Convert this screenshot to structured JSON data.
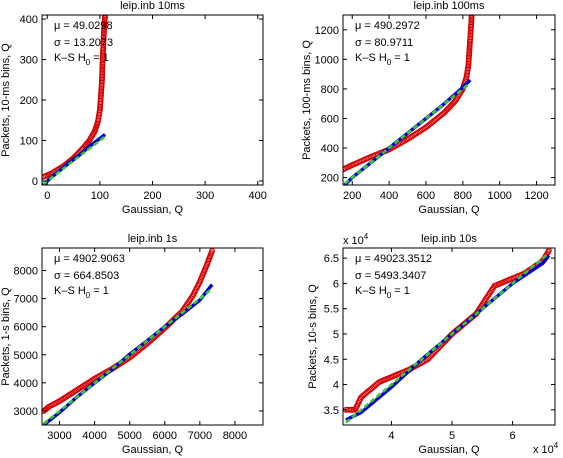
{
  "chart_data": [
    {
      "type": "scatter",
      "title": "leip.inb 10ms",
      "xlabel": "Gaussian, Q",
      "ylabel": "Packets, 10-ms bins, Q",
      "xlim": [
        -10,
        410
      ],
      "ylim": [
        -10,
        410
      ],
      "xticks": [
        0,
        100,
        200,
        300,
        400
      ],
      "yticks": [
        0,
        100,
        200,
        300,
        400
      ],
      "tick_labels_x": [
        "0",
        "100",
        "200",
        "300",
        "400"
      ],
      "tick_labels_y": [
        "0",
        "100",
        "200",
        "300",
        "400"
      ],
      "annotations": {
        "mu": "μ = 49.0298",
        "sigma": "σ = 13.2073",
        "ks": "K–S H",
        "ks_sub": "0",
        "ks_val": " = 1"
      },
      "series": [
        {
          "color": "#d40000",
          "style": "markers",
          "x": [
            -8,
            0,
            10,
            20,
            30,
            40,
            50,
            60,
            70,
            80,
            90,
            96,
            100,
            102,
            104,
            105,
            106,
            107,
            108,
            109,
            110
          ],
          "y": [
            10,
            14,
            20,
            28,
            36,
            46,
            57,
            70,
            84,
            100,
            122,
            145,
            175,
            210,
            250,
            290,
            320,
            350,
            375,
            395,
            410
          ]
        },
        {
          "color": "#0000cc",
          "style": "line",
          "x": [
            -8,
            0,
            20,
            40,
            60,
            80,
            100,
            110
          ],
          "y": [
            -10,
            0,
            22,
            43,
            63,
            85,
            105,
            115
          ]
        },
        {
          "color": "#33cc33",
          "style": "dashed",
          "x": [
            -8,
            0,
            20,
            40,
            60,
            80,
            100,
            108
          ],
          "y": [
            -8,
            0,
            20,
            40,
            60,
            80,
            100,
            108
          ]
        }
      ]
    },
    {
      "type": "scatter",
      "title": "leip.inb 100ms",
      "xlabel": "Gaussian, Q",
      "ylabel": "Packets, 100-ms bins, Q",
      "xlim": [
        150,
        1300
      ],
      "ylim": [
        150,
        1300
      ],
      "xticks": [
        200,
        400,
        600,
        800,
        1000,
        1200
      ],
      "yticks": [
        200,
        400,
        600,
        800,
        1000,
        1200
      ],
      "tick_labels_x": [
        "200",
        "400",
        "600",
        "800",
        "1000",
        "1200"
      ],
      "tick_labels_y": [
        "200",
        "400",
        "600",
        "800",
        "1000",
        "1200"
      ],
      "annotations": {
        "mu": "μ = 490.2972",
        "sigma": "σ = 80.9711",
        "ks": "K–S H",
        "ks_sub": "0",
        "ks_val": " = 1"
      },
      "series": [
        {
          "color": "#d40000",
          "style": "markers",
          "x": [
            150,
            200,
            300,
            400,
            500,
            600,
            700,
            760,
            800,
            820,
            830,
            835,
            840,
            845,
            848
          ],
          "y": [
            255,
            285,
            340,
            390,
            460,
            540,
            640,
            720,
            800,
            880,
            960,
            1050,
            1140,
            1230,
            1300
          ]
        },
        {
          "color": "#0000cc",
          "style": "line",
          "x": [
            160,
            200,
            300,
            400,
            500,
            600,
            700,
            800,
            840
          ],
          "y": [
            150,
            200,
            300,
            400,
            500,
            600,
            700,
            810,
            860
          ]
        },
        {
          "color": "#33cc33",
          "style": "dashed",
          "x": [
            160,
            200,
            300,
            400,
            500,
            600,
            700,
            800,
            835
          ],
          "y": [
            160,
            200,
            300,
            400,
            500,
            600,
            700,
            800,
            835
          ]
        }
      ]
    },
    {
      "type": "scatter",
      "title": "leip.inb 1s",
      "xlabel": "Gaussian, Q",
      "ylabel": "Packets, 1-s bins, Q",
      "xlim": [
        2500,
        8800
      ],
      "ylim": [
        2500,
        8800
      ],
      "xticks": [
        3000,
        4000,
        5000,
        6000,
        7000,
        8000
      ],
      "yticks": [
        3000,
        4000,
        5000,
        6000,
        7000,
        8000
      ],
      "tick_labels_x": [
        "3000",
        "4000",
        "5000",
        "6000",
        "7000",
        "8000"
      ],
      "tick_labels_y": [
        "3000",
        "4000",
        "5000",
        "6000",
        "7000",
        "8000"
      ],
      "annotations": {
        "mu": "μ = 4902.9063",
        "sigma": "σ = 664.8503",
        "ks": "K–S H",
        "ks_sub": "0",
        "ks_val": " = 1"
      },
      "series": [
        {
          "color": "#d40000",
          "style": "markers",
          "x": [
            2550,
            2700,
            3000,
            3500,
            4000,
            4500,
            5000,
            5500,
            6000,
            6500,
            6800,
            7000,
            7200,
            7350
          ],
          "y": [
            3000,
            3150,
            3350,
            3750,
            4150,
            4500,
            4900,
            5400,
            5950,
            6550,
            7100,
            7600,
            8200,
            8700
          ]
        },
        {
          "color": "#0000cc",
          "style": "line",
          "x": [
            2550,
            3000,
            3500,
            4000,
            4500,
            5000,
            5500,
            6000,
            6500,
            7000,
            7350
          ],
          "y": [
            2500,
            2950,
            3500,
            4000,
            4480,
            5020,
            5500,
            6000,
            6450,
            6950,
            7500
          ]
        },
        {
          "color": "#33cc33",
          "style": "dashed",
          "x": [
            2550,
            3000,
            4000,
            5000,
            6000,
            7000,
            7350
          ],
          "y": [
            2550,
            3000,
            4000,
            5000,
            6000,
            7000,
            7350
          ]
        }
      ]
    },
    {
      "type": "scatter",
      "title": "leip.inb 10s",
      "xlabel": "Gaussian, Q",
      "ylabel": "Packets, 10-s bins, Q",
      "xlim": [
        3.2,
        6.7
      ],
      "ylim": [
        3.2,
        6.7
      ],
      "xticks": [
        4,
        5,
        6
      ],
      "yticks": [
        3.5,
        4,
        4.5,
        5,
        5.5,
        6,
        6.5
      ],
      "tick_labels_x": [
        "4",
        "5",
        "6"
      ],
      "tick_labels_y": [
        "3.5",
        "4",
        "4.5",
        "5",
        "5.5",
        "6",
        "6.5"
      ],
      "scale_note_base": "x 10",
      "scale_note_exp": "4",
      "annotations": {
        "mu": "μ = 49023.3512",
        "sigma": "σ = 5493.3407",
        "ks": "K–S H",
        "ks_sub": "0",
        "ks_val": " = 1"
      },
      "series": [
        {
          "color": "#d40000",
          "style": "markers",
          "x": [
            3.25,
            3.4,
            3.5,
            3.6,
            3.7,
            3.8,
            4.0,
            4.3,
            4.6,
            5.0,
            5.4,
            5.7,
            5.9,
            6.2,
            6.5,
            6.6
          ],
          "y": [
            3.5,
            3.5,
            3.75,
            3.85,
            3.95,
            4.05,
            4.15,
            4.3,
            4.5,
            5.0,
            5.4,
            5.95,
            6.05,
            6.2,
            6.45,
            6.65
          ]
        },
        {
          "color": "#0000cc",
          "style": "line",
          "x": [
            3.25,
            3.5,
            4.0,
            4.5,
            5.0,
            5.5,
            6.0,
            6.5,
            6.6
          ],
          "y": [
            3.3,
            3.45,
            3.95,
            4.5,
            5.0,
            5.5,
            6.0,
            6.4,
            6.55
          ]
        },
        {
          "color": "#33cc33",
          "style": "dashed",
          "x": [
            3.25,
            4.0,
            5.0,
            6.0,
            6.6
          ],
          "y": [
            3.25,
            4.0,
            5.0,
            6.0,
            6.6
          ]
        }
      ]
    }
  ]
}
